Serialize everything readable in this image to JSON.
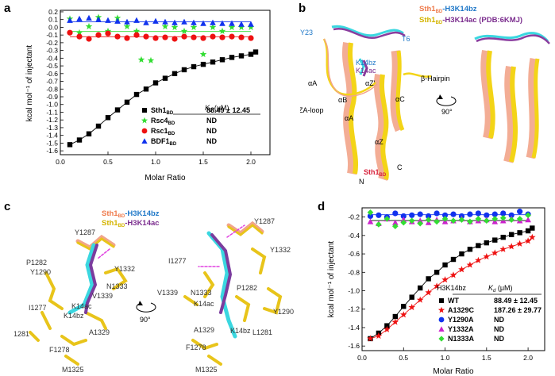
{
  "panels": {
    "a": {
      "letter": "a",
      "legend": {
        "kd_header": "K",
        "kd_sub": "d",
        "kd_unit": " (μM)",
        "entries": [
          {
            "name": "Sth1",
            "sub": "BD",
            "kd": "88.49 ± 12.45",
            "color": "#000000",
            "marker": "square"
          },
          {
            "name": "Rsc4",
            "sub": "BD",
            "kd": "ND",
            "color": "#33dd33",
            "marker": "star"
          },
          {
            "name": "Rsc1",
            "sub": "BD",
            "kd": "ND",
            "color": "#ee1111",
            "marker": "circle"
          },
          {
            "name": "BDF1",
            "sub": "BD",
            "kd": "ND",
            "color": "#1133ee",
            "marker": "triangle"
          }
        ]
      }
    },
    "b": {
      "letter": "b",
      "title1_a": "Sth1",
      "title1_sub": "BD",
      "title1_b": "-H3K14bz",
      "title2_a": "Sth1",
      "title2_sub": "BD",
      "title2_b": "-H3K14ac (PDB:6KMJ)",
      "labels": {
        "y23": "Y23",
        "t6": "T6",
        "k14bz": "K14bz",
        "k14ac": "K14ac",
        "az_prime": "αZ'",
        "aa_top": "αA",
        "ab": "αB",
        "aa": "αA",
        "ac": "αC",
        "az": "αZ",
        "za_loop": "ZA-loop",
        "hairpin": "β-Hairpin",
        "rotation": "90°",
        "n_term": "N",
        "c_term": "C",
        "sth1_a": "Sth1",
        "sth1_sub": "BD"
      }
    },
    "c": {
      "letter": "c",
      "title1_a": "Sth1",
      "title1_sub": "BD",
      "title1_b": "-H3K14bz",
      "title2_a": "Sth1",
      "title2_sub": "BD",
      "title2_b": "-H3K14ac",
      "rotation": "90°",
      "left_labels": {
        "y1287": "Y1287",
        "y1332": "Y1332",
        "p1282": "P1282",
        "y1290": "Y1290",
        "n1333": "N1333",
        "v1339": "V1339",
        "i1277": "I1277",
        "k14ac": "K14ac",
        "k14bz": "K14bz",
        "l1281": "L1281",
        "a1329": "A1329",
        "f1278": "F1278",
        "m1325": "M1325"
      },
      "right_labels": {
        "y1287": "Y1287",
        "y1332": "Y1332",
        "i1277": "I1277",
        "v1339": "V1339",
        "n1333": "N1333",
        "p1282": "P1282",
        "k14ac": "K14ac",
        "y1290": "Y1290",
        "a1329": "A1329",
        "k14bz": "K14bz",
        "l1281": "L1281",
        "f1278": "F1278",
        "m1325": "M1325"
      }
    },
    "d": {
      "letter": "d",
      "legend": {
        "title": "H3K14bz",
        "kd_header": "K",
        "kd_sub": "d",
        "kd_unit": " (μM)",
        "entries": [
          {
            "name": "WT",
            "kd": "88.49 ± 12.45",
            "color": "#000000",
            "marker": "square"
          },
          {
            "name": "A1329C",
            "kd": "187.26 ± 29.77",
            "color": "#ee1111",
            "marker": "star"
          },
          {
            "name": "Y1290A",
            "kd": "ND",
            "color": "#1133ee",
            "marker": "circle"
          },
          {
            "name": "Y1332A",
            "kd": "ND",
            "color": "#cc22cc",
            "marker": "triangle"
          },
          {
            "name": "N1333A",
            "kd": "ND",
            "color": "#33dd33",
            "marker": "diamond"
          }
        ]
      }
    }
  },
  "chart_data": [
    {
      "type": "scatter",
      "panel": "a",
      "xlabel": "Molar Ratio",
      "ylabel": "kcal mol⁻¹ of injectant",
      "xlim": [
        0,
        2.2
      ],
      "ylim": [
        -1.65,
        0.22
      ],
      "xticks": [
        "0.0",
        "0.5",
        "1.0",
        "1.5",
        "2.0"
      ],
      "yticks": [
        "0.2",
        "0.1",
        "0.0",
        "-0.1",
        "-0.2",
        "-0.3",
        "-0.4",
        "-0.5",
        "-0.6",
        "-0.7",
        "-0.8",
        "-0.9",
        "-1.0",
        "-1.1",
        "-1.2",
        "-1.3",
        "-1.4",
        "-1.5",
        "-1.6"
      ],
      "series": [
        {
          "name": "Sth1BD",
          "marker": "square",
          "color": "#000000",
          "fit": true,
          "x": [
            0.1,
            0.2,
            0.3,
            0.4,
            0.5,
            0.6,
            0.7,
            0.8,
            0.9,
            1.0,
            1.1,
            1.2,
            1.3,
            1.4,
            1.5,
            1.6,
            1.7,
            1.8,
            1.9,
            2.0,
            2.05
          ],
          "y": [
            -1.52,
            -1.46,
            -1.38,
            -1.28,
            -1.17,
            -1.07,
            -0.97,
            -0.87,
            -0.8,
            -0.72,
            -0.66,
            -0.6,
            -0.55,
            -0.51,
            -0.48,
            -0.45,
            -0.42,
            -0.39,
            -0.37,
            -0.35,
            -0.32
          ]
        },
        {
          "name": "Rsc4BD",
          "marker": "star",
          "color": "#33dd33",
          "x": [
            0.1,
            0.2,
            0.3,
            0.4,
            0.5,
            0.6,
            0.7,
            0.8,
            0.85,
            0.95,
            1.1,
            1.2,
            1.3,
            1.4,
            1.5,
            1.6,
            1.7,
            1.8,
            1.9,
            2.0
          ],
          "y": [
            0.11,
            -0.07,
            0.01,
            0.13,
            -0.05,
            0.12,
            0.01,
            -0.05,
            -0.42,
            -0.43,
            0.01,
            0.0,
            -0.05,
            0.0,
            -0.35,
            0.0,
            -0.05,
            0.0,
            0.0,
            0.0
          ]
        },
        {
          "name": "Rsc1BD",
          "marker": "circle",
          "color": "#ee1111",
          "x": [
            0.1,
            0.2,
            0.3,
            0.4,
            0.5,
            0.6,
            0.7,
            0.8,
            0.9,
            1.0,
            1.1,
            1.2,
            1.3,
            1.4,
            1.5,
            1.6,
            1.7,
            1.8,
            1.9,
            2.0
          ],
          "y": [
            -0.07,
            -0.12,
            -0.15,
            -0.1,
            -0.08,
            -0.12,
            -0.14,
            -0.1,
            -0.12,
            -0.14,
            -0.13,
            -0.15,
            -0.12,
            -0.13,
            -0.14,
            -0.12,
            -0.13,
            -0.12,
            -0.13,
            -0.14
          ]
        },
        {
          "name": "BDF1BD",
          "marker": "triangle",
          "color": "#1133ee",
          "x": [
            0.1,
            0.2,
            0.3,
            0.4,
            0.5,
            0.6,
            0.7,
            0.8,
            0.9,
            1.0,
            1.1,
            1.2,
            1.3,
            1.4,
            1.5,
            1.6,
            1.7,
            1.8,
            1.9,
            2.0
          ],
          "y": [
            0.09,
            0.11,
            0.12,
            0.1,
            0.09,
            0.08,
            0.07,
            0.09,
            0.06,
            0.08,
            0.07,
            0.06,
            0.07,
            0.06,
            0.05,
            0.06,
            0.05,
            0.05,
            0.04,
            0.04
          ]
        }
      ]
    },
    {
      "type": "scatter",
      "panel": "d",
      "xlabel": "Molar Ratio",
      "ylabel": "kcal mol⁻¹ of injectant",
      "xlim": [
        0,
        2.2
      ],
      "ylim": [
        -1.65,
        -0.1
      ],
      "xticks": [
        "0.0",
        "0.5",
        "1.0",
        "1.5",
        "2.0"
      ],
      "yticks": [
        "-0.2",
        "-0.4",
        "-0.6",
        "-0.8",
        "-1.0",
        "-1.2",
        "-1.4",
        "-1.6"
      ],
      "series": [
        {
          "name": "WT",
          "marker": "square",
          "color": "#000000",
          "fit": true,
          "x": [
            0.1,
            0.2,
            0.3,
            0.4,
            0.5,
            0.6,
            0.7,
            0.8,
            0.9,
            1.0,
            1.1,
            1.2,
            1.3,
            1.4,
            1.5,
            1.6,
            1.7,
            1.8,
            1.9,
            2.0,
            2.05
          ],
          "y": [
            -1.52,
            -1.46,
            -1.38,
            -1.28,
            -1.17,
            -1.07,
            -0.97,
            -0.87,
            -0.8,
            -0.72,
            -0.66,
            -0.6,
            -0.55,
            -0.51,
            -0.48,
            -0.45,
            -0.42,
            -0.39,
            -0.37,
            -0.35,
            -0.32
          ]
        },
        {
          "name": "A1329C",
          "marker": "star",
          "color": "#ee1111",
          "fit": true,
          "x": [
            0.1,
            0.2,
            0.3,
            0.4,
            0.5,
            0.6,
            0.7,
            0.8,
            0.9,
            1.0,
            1.1,
            1.2,
            1.3,
            1.4,
            1.5,
            1.6,
            1.7,
            1.8,
            1.9,
            2.0,
            2.05
          ],
          "y": [
            -1.52,
            -1.49,
            -1.42,
            -1.34,
            -1.26,
            -1.18,
            -1.1,
            -1.02,
            -0.95,
            -0.88,
            -0.83,
            -0.77,
            -0.72,
            -0.67,
            -0.63,
            -0.59,
            -0.55,
            -0.52,
            -0.49,
            -0.46,
            -0.42
          ]
        },
        {
          "name": "Y1290A",
          "marker": "circle",
          "color": "#1133ee",
          "x": [
            0.1,
            0.2,
            0.3,
            0.4,
            0.5,
            0.6,
            0.7,
            0.8,
            0.9,
            1.0,
            1.1,
            1.2,
            1.3,
            1.4,
            1.5,
            1.6,
            1.7,
            1.8,
            1.9,
            2.0
          ],
          "y": [
            -0.19,
            -0.18,
            -0.2,
            -0.16,
            -0.19,
            -0.18,
            -0.17,
            -0.19,
            -0.16,
            -0.18,
            -0.17,
            -0.19,
            -0.17,
            -0.16,
            -0.18,
            -0.17,
            -0.16,
            -0.18,
            -0.14,
            -0.17
          ]
        },
        {
          "name": "Y1332A",
          "marker": "triangle",
          "color": "#cc22cc",
          "x": [
            0.1,
            0.2,
            0.3,
            0.4,
            0.5,
            0.6,
            0.7,
            0.8,
            0.9,
            1.0,
            1.1,
            1.2,
            1.3,
            1.4,
            1.5,
            1.6,
            1.7,
            1.8,
            1.9,
            2.0
          ],
          "y": [
            -0.25,
            -0.27,
            -0.22,
            -0.26,
            -0.23,
            -0.25,
            -0.24,
            -0.26,
            -0.23,
            -0.25,
            -0.24,
            -0.22,
            -0.25,
            -0.24,
            -0.23,
            -0.25,
            -0.24,
            -0.22,
            -0.24,
            -0.23
          ]
        },
        {
          "name": "N1333A",
          "marker": "diamond",
          "color": "#33dd33",
          "x": [
            0.1,
            0.2,
            0.3,
            0.4,
            0.5,
            0.6,
            0.7,
            0.8,
            0.9,
            1.0,
            1.1,
            1.2,
            1.3,
            1.4,
            1.5,
            1.6,
            1.7,
            1.8,
            1.9,
            2.0
          ],
          "y": [
            -0.15,
            -0.28,
            -0.22,
            -0.3,
            -0.26,
            -0.24,
            -0.27,
            -0.23,
            -0.25,
            -0.22,
            -0.24,
            -0.23,
            -0.25,
            -0.22,
            -0.24,
            -0.22,
            -0.21,
            -0.23,
            -0.22,
            -0.18
          ]
        }
      ]
    }
  ]
}
